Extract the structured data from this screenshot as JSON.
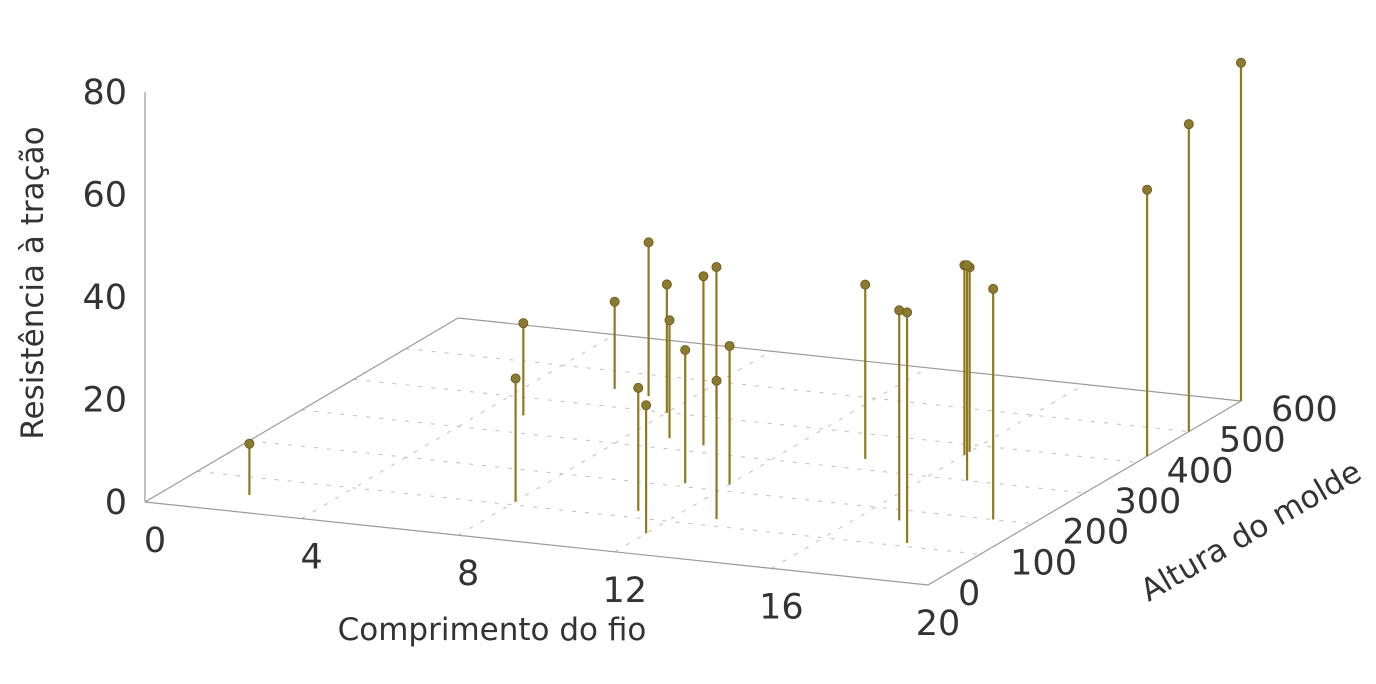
{
  "chart_data": {
    "type": "scatter",
    "title": "",
    "xlabel": "Comprimento do fio",
    "ylabel": "Altura do molde",
    "zlabel": "Resistência à tração",
    "xlim": [
      0,
      20
    ],
    "ylim": [
      0,
      600
    ],
    "zlim": [
      0,
      80
    ],
    "x_ticks": [
      "0",
      "4",
      "8",
      "12",
      "16",
      "20"
    ],
    "y_ticks": [
      "0",
      "100",
      "200",
      "300",
      "400",
      "500",
      "600"
    ],
    "z_ticks": [
      "0",
      "20",
      "40",
      "60",
      "80"
    ],
    "points": [
      {
        "x": 2,
        "y": 50,
        "z": 10
      },
      {
        "x": 8,
        "y": 110,
        "z": 24
      },
      {
        "x": 11,
        "y": 120,
        "z": 24
      },
      {
        "x": 12,
        "y": 60,
        "z": 25
      },
      {
        "x": 5,
        "y": 350,
        "z": 18
      },
      {
        "x": 6,
        "y": 450,
        "z": 17
      },
      {
        "x": 7,
        "y": 440,
        "z": 30
      },
      {
        "x": 8,
        "y": 400,
        "z": 25
      },
      {
        "x": 9,
        "y": 420,
        "z": 28
      },
      {
        "x": 9,
        "y": 330,
        "z": 23
      },
      {
        "x": 10,
        "y": 320,
        "z": 33
      },
      {
        "x": 11,
        "y": 210,
        "z": 26
      },
      {
        "x": 12,
        "y": 220,
        "z": 27
      },
      {
        "x": 13,
        "y": 120,
        "z": 27
      },
      {
        "x": 14,
        "y": 330,
        "z": 34
      },
      {
        "x": 16,
        "y": 380,
        "z": 36
      },
      {
        "x": 16,
        "y": 370,
        "z": 37
      },
      {
        "x": 17,
        "y": 170,
        "z": 41
      },
      {
        "x": 17,
        "y": 300,
        "z": 42
      },
      {
        "x": 18,
        "y": 110,
        "z": 45
      },
      {
        "x": 19,
        "y": 200,
        "z": 45
      },
      {
        "x": 20,
        "y": 420,
        "z": 52
      },
      {
        "x": 20,
        "y": 500,
        "z": 60
      },
      {
        "x": 20,
        "y": 600,
        "z": 66
      }
    ]
  }
}
